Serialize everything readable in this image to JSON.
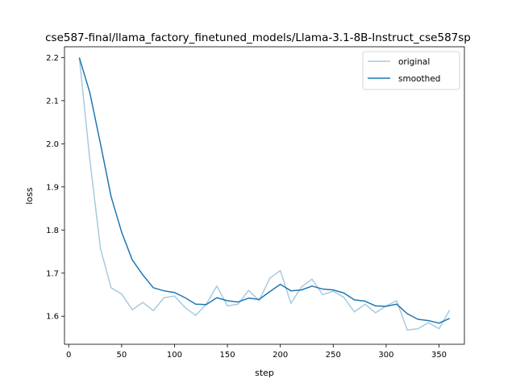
{
  "chart_data": {
    "type": "line",
    "title": "cse587-final/llama_factory_finetuned_models/Llama-3.1-8B-Instruct_cse587sp",
    "xlabel": "step",
    "ylabel": "loss",
    "xlim": [
      -4,
      374
    ],
    "ylim": [
      1.535,
      2.225
    ],
    "xticks": [
      0,
      50,
      100,
      150,
      200,
      250,
      300,
      350
    ],
    "yticks": [
      1.6,
      1.7,
      1.8,
      1.9,
      2.0,
      2.1,
      2.2
    ],
    "xtick_labels": [
      "0",
      "50",
      "100",
      "150",
      "200",
      "250",
      "300",
      "350"
    ],
    "ytick_labels": [
      "1.6",
      "1.7",
      "1.8",
      "1.9",
      "2.0",
      "2.1",
      "2.2"
    ],
    "legend": {
      "position": "top-right"
    },
    "x": [
      10,
      20,
      30,
      40,
      50,
      60,
      70,
      80,
      90,
      100,
      110,
      120,
      130,
      140,
      150,
      160,
      170,
      180,
      190,
      200,
      210,
      220,
      230,
      240,
      250,
      260,
      270,
      280,
      290,
      300,
      310,
      320,
      330,
      340,
      350,
      360
    ],
    "series": [
      {
        "name": "original",
        "color": "#a6cae1",
        "values": [
          2.2,
          1.962,
          1.757,
          1.666,
          1.652,
          1.615,
          1.632,
          1.613,
          1.643,
          1.647,
          1.62,
          1.602,
          1.628,
          1.67,
          1.624,
          1.628,
          1.66,
          1.636,
          1.688,
          1.706,
          1.63,
          1.668,
          1.686,
          1.65,
          1.658,
          1.644,
          1.61,
          1.628,
          1.608,
          1.624,
          1.636,
          1.568,
          1.571,
          1.585,
          1.571,
          1.614
        ]
      },
      {
        "name": "smoothed",
        "color": "#1f77b4",
        "values": [
          2.2,
          2.118,
          2.0,
          1.878,
          1.795,
          1.731,
          1.696,
          1.666,
          1.659,
          1.655,
          1.643,
          1.628,
          1.627,
          1.643,
          1.636,
          1.633,
          1.642,
          1.639,
          1.657,
          1.674,
          1.659,
          1.661,
          1.67,
          1.663,
          1.661,
          1.654,
          1.638,
          1.635,
          1.624,
          1.623,
          1.628,
          1.606,
          1.593,
          1.59,
          1.584,
          1.595
        ]
      }
    ]
  }
}
